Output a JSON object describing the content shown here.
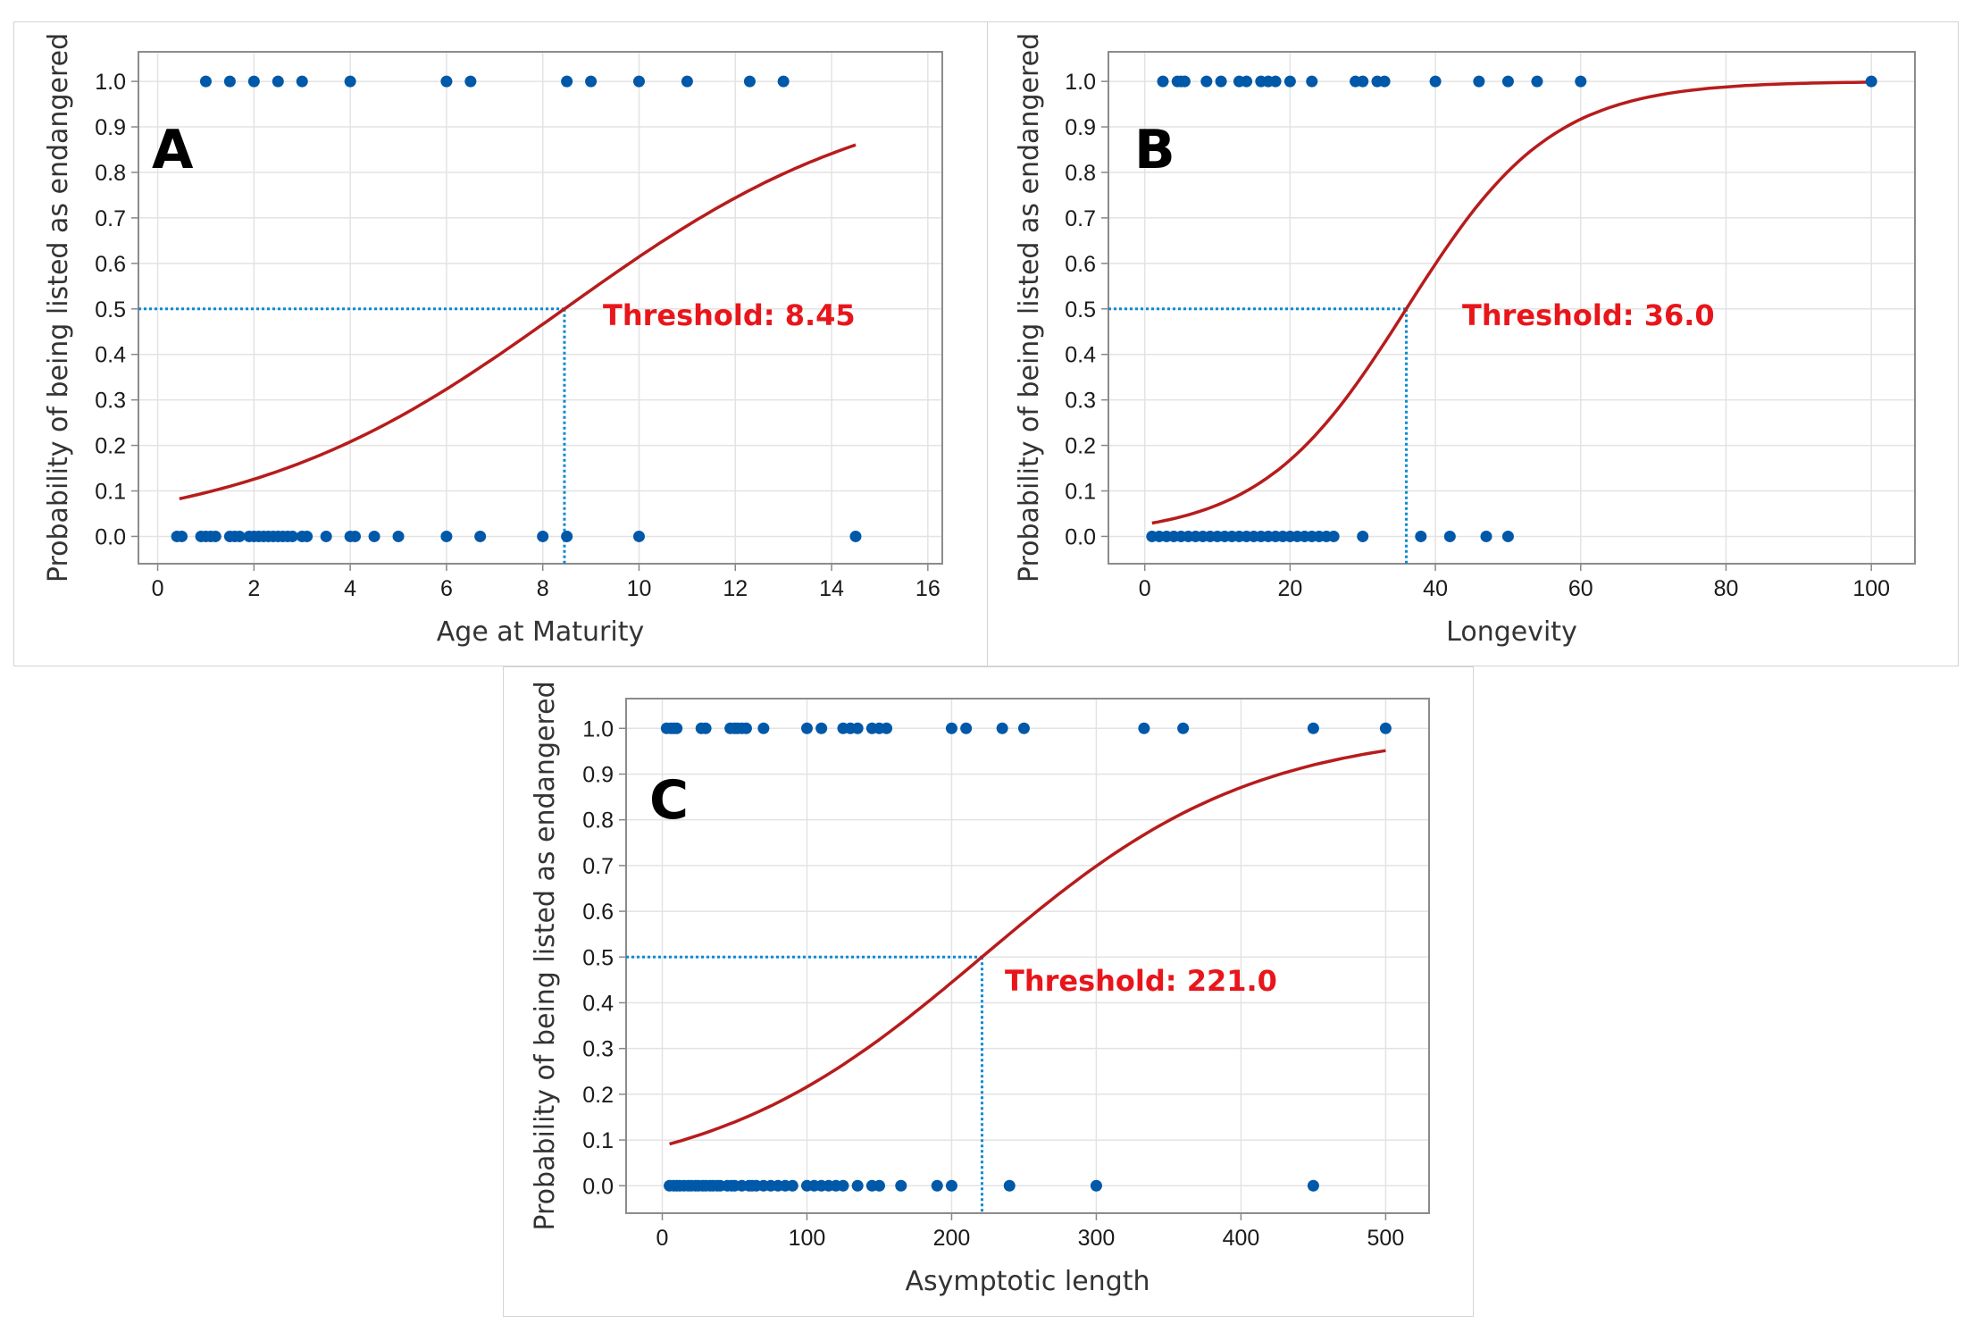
{
  "chart_data": [
    {
      "type": "scatter",
      "panel_label": "A",
      "xlabel": "Age at Maturity",
      "ylabel": "Probability of being listed as endangered",
      "xlim": [
        -0.4,
        16.3
      ],
      "ylim": [
        -0.06,
        1.065
      ],
      "xticks": [
        0,
        2,
        4,
        6,
        8,
        10,
        12,
        14,
        16
      ],
      "yticks": [
        0.0,
        0.1,
        0.2,
        0.3,
        0.4,
        0.5,
        0.6,
        0.7,
        0.8,
        0.9,
        1.0
      ],
      "grid": true,
      "annotation": "Threshold: 8.45",
      "threshold": 8.45,
      "logistic": {
        "x_range": [
          0.45,
          14.5
        ],
        "intercept": -2.54,
        "slope": 0.3006
      },
      "points_y1": [
        1,
        1.5,
        2,
        2.5,
        3,
        4,
        6,
        6.5,
        8.5,
        9,
        10,
        11,
        12.3,
        13
      ],
      "points_y0": [
        0.4,
        0.5,
        0.9,
        1,
        1.1,
        1.2,
        1.5,
        1.6,
        1.7,
        1.9,
        2,
        2.1,
        2.2,
        2.3,
        2.4,
        2.5,
        2.6,
        2.7,
        2.8,
        3,
        3.1,
        3.5,
        4,
        4.1,
        4.5,
        5,
        6,
        6.7,
        8,
        8.5,
        10,
        14.5
      ]
    },
    {
      "type": "scatter",
      "panel_label": "B",
      "xlabel": "Longevity",
      "ylabel": "Probability of being listed as endangered",
      "xlim": [
        -5,
        106
      ],
      "ylim": [
        -0.06,
        1.065
      ],
      "xticks": [
        0,
        20,
        40,
        60,
        80,
        100
      ],
      "yticks": [
        0.0,
        0.1,
        0.2,
        0.3,
        0.4,
        0.5,
        0.6,
        0.7,
        0.8,
        0.9,
        1.0
      ],
      "grid": true,
      "annotation": "Threshold: 36.0",
      "threshold": 36.0,
      "logistic": {
        "x_range": [
          1.0,
          100
        ],
        "intercept": -3.6,
        "slope": 0.1
      },
      "points_y1": [
        2.5,
        4.5,
        5,
        5.5,
        8.5,
        10.5,
        13,
        14,
        16,
        17,
        18,
        20,
        23,
        29,
        30,
        32,
        33,
        40,
        46,
        50,
        54,
        60,
        100
      ],
      "points_y0": [
        1,
        2,
        3,
        4,
        5,
        6,
        7,
        8,
        9,
        10,
        11,
        12,
        13,
        14,
        15,
        16,
        17,
        18,
        19,
        20,
        21,
        22,
        23,
        24,
        25,
        26,
        30,
        38,
        42,
        47,
        50
      ]
    },
    {
      "type": "scatter",
      "panel_label": "C",
      "xlabel": "Asymptotic length",
      "ylabel": "Probability of being listed as endangered",
      "xlim": [
        -25,
        530
      ],
      "ylim": [
        -0.06,
        1.065
      ],
      "xticks": [
        0,
        100,
        200,
        300,
        400,
        500
      ],
      "yticks": [
        0.0,
        0.1,
        0.2,
        0.3,
        0.4,
        0.5,
        0.6,
        0.7,
        0.8,
        0.9,
        1.0
      ],
      "grid": true,
      "annotation": "Threshold: 221.0",
      "threshold": 221.0,
      "logistic": {
        "x_range": [
          5,
          500
        ],
        "intercept": -2.353,
        "slope": 0.01065
      },
      "points_y1": [
        3,
        6,
        8,
        10,
        27,
        30,
        47,
        50,
        52,
        55,
        58,
        70,
        100,
        110,
        125,
        130,
        135,
        145,
        150,
        155,
        200,
        210,
        235,
        250,
        333,
        360,
        450,
        500
      ],
      "points_y0": [
        5,
        8,
        10,
        12,
        15,
        18,
        20,
        23,
        25,
        28,
        30,
        33,
        35,
        38,
        40,
        45,
        48,
        50,
        55,
        60,
        62,
        65,
        70,
        75,
        80,
        85,
        90,
        100,
        105,
        110,
        115,
        120,
        125,
        135,
        145,
        150,
        165,
        190,
        200,
        240,
        300,
        450
      ]
    }
  ]
}
